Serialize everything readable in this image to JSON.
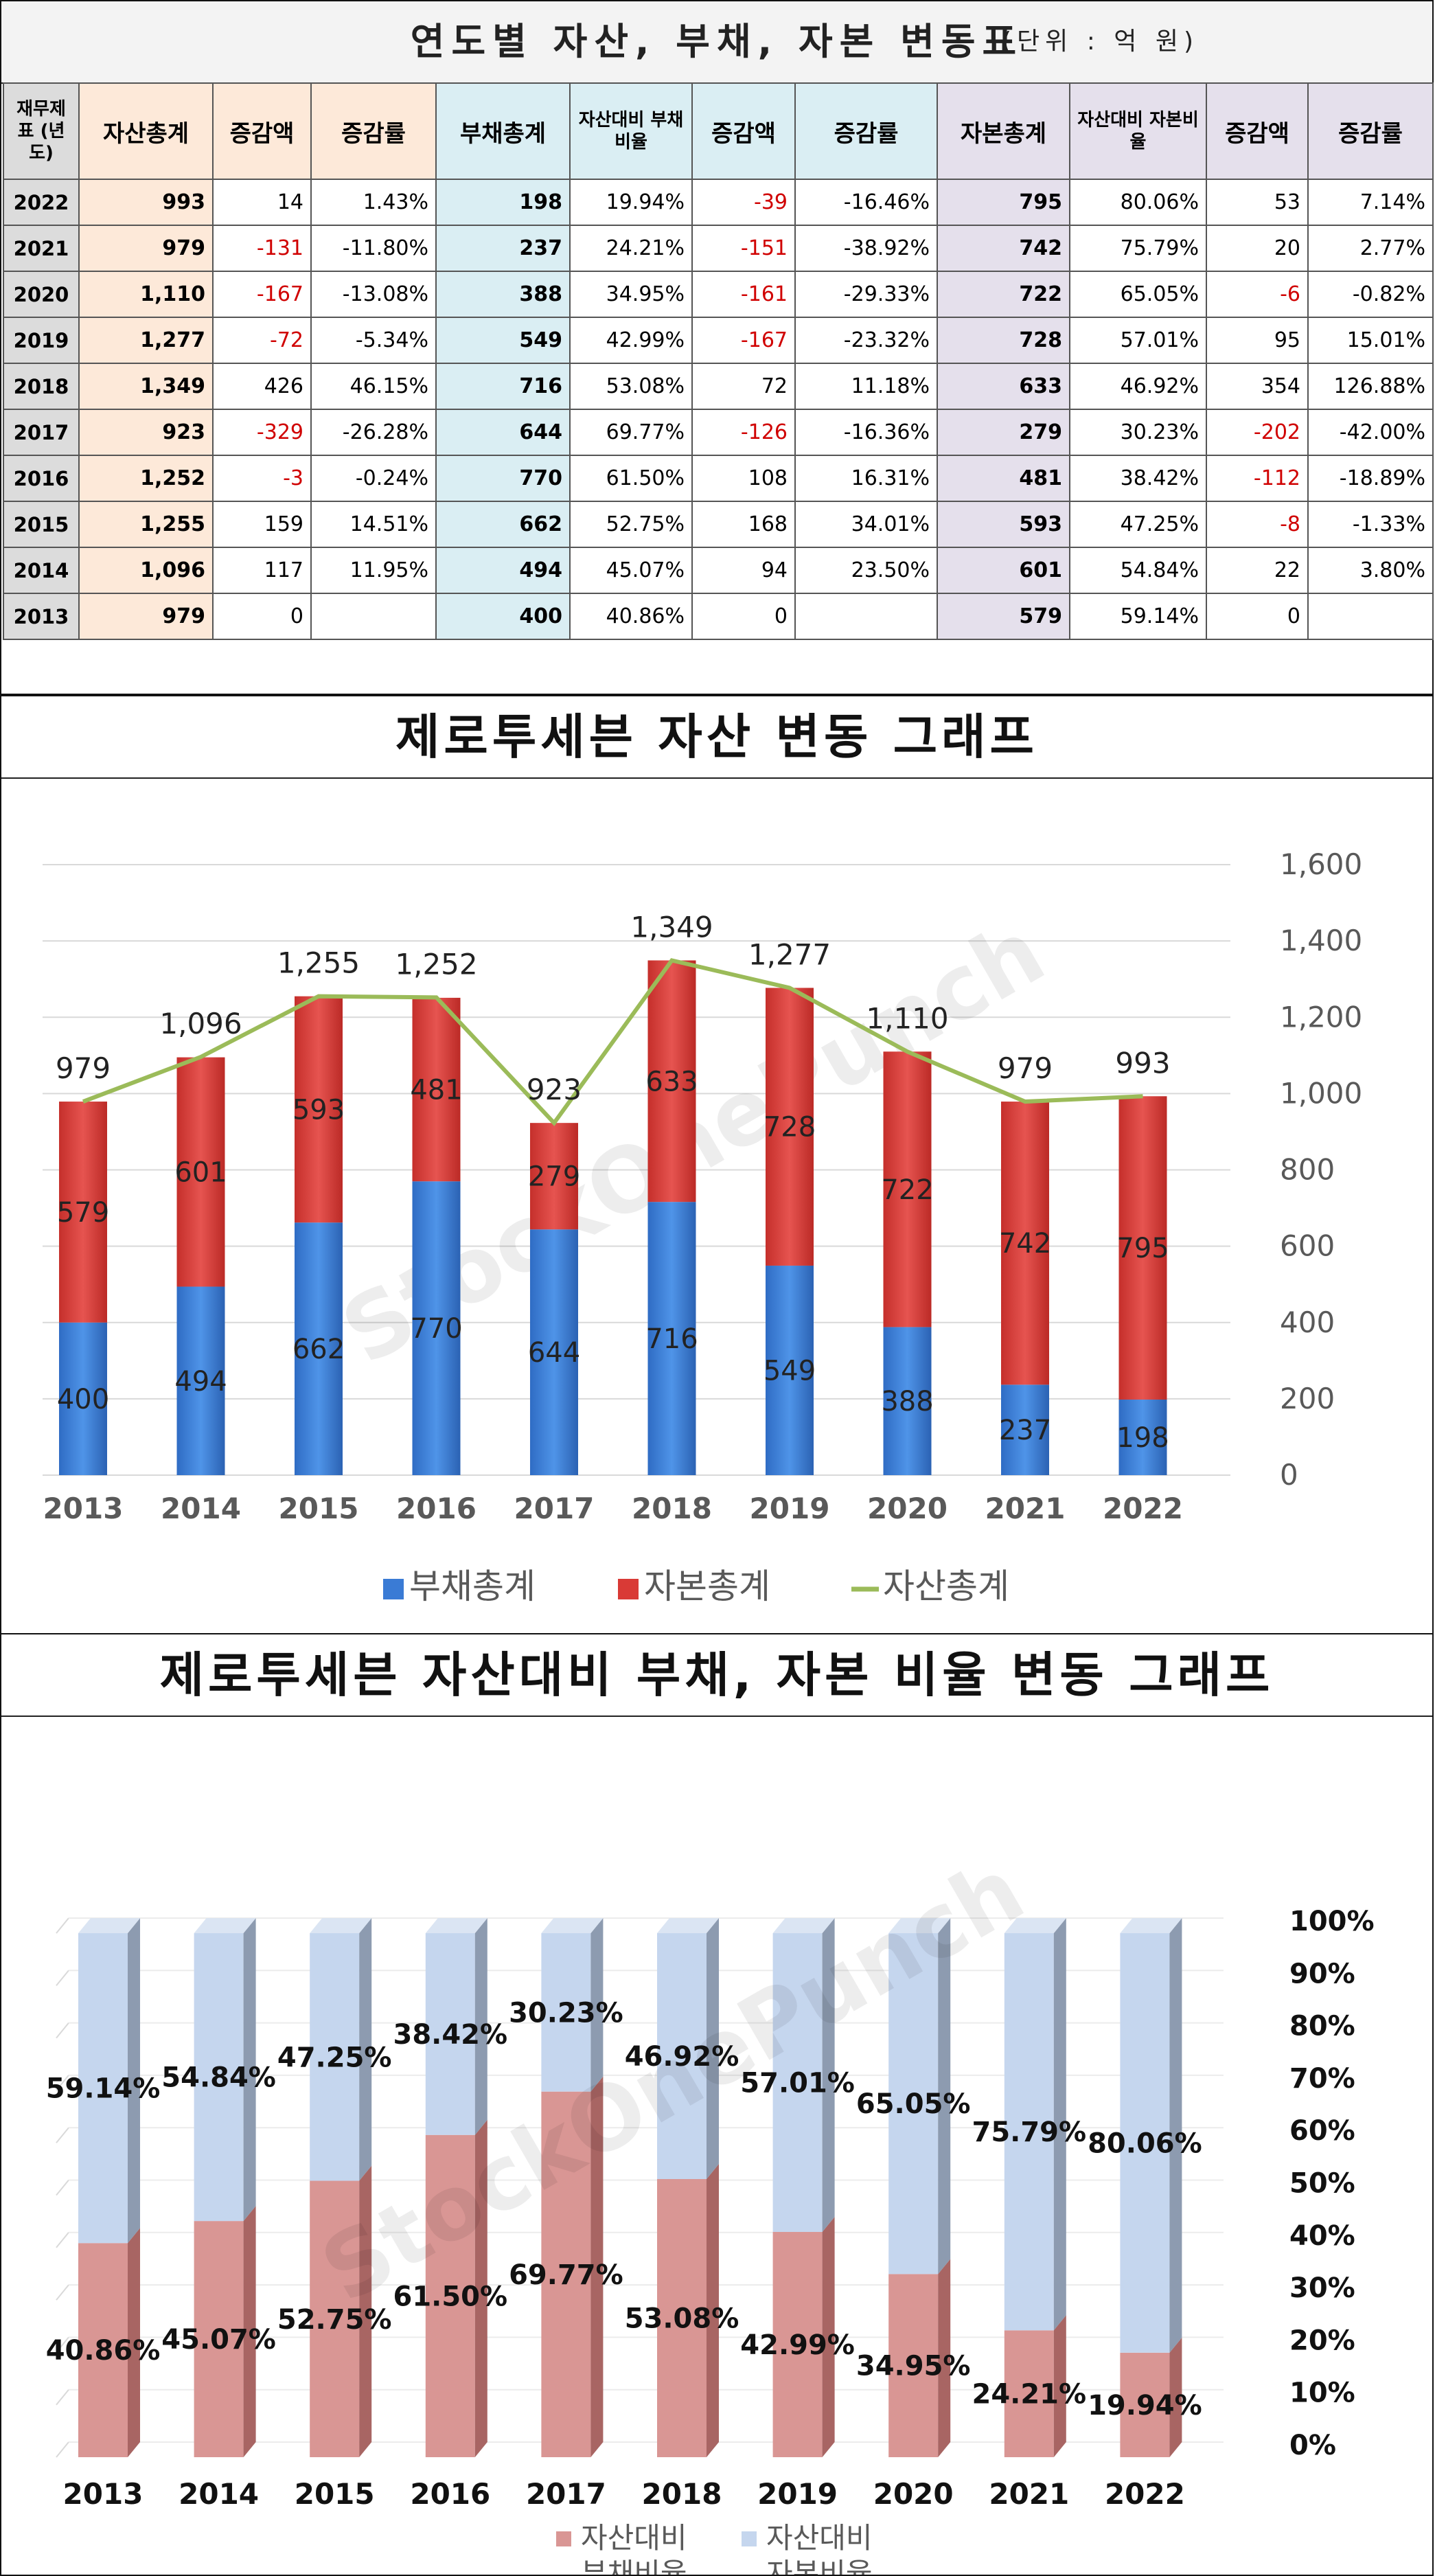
{
  "table": {
    "title": "연도별 자산, 부채, 자본 변동표",
    "unit": "(단위 : 억 원)",
    "headers": [
      "재무제표 (년도)",
      "자산총계",
      "증감액",
      "증감률",
      "부채총계",
      "자산대비 부채비율",
      "증감액",
      "증감률",
      "자본총계",
      "자산대비 자본비율",
      "증감액",
      "증감률"
    ],
    "rows": [
      {
        "year": "2022",
        "asset": "993",
        "asset_chg": "14",
        "asset_rate": "1.43%",
        "liab": "198",
        "liab_ratio": "19.94%",
        "liab_chg": "-39",
        "liab_rate": "-16.46%",
        "eq": "795",
        "eq_ratio": "80.06%",
        "eq_chg": "53",
        "eq_rate": "7.14%"
      },
      {
        "year": "2021",
        "asset": "979",
        "asset_chg": "-131",
        "asset_rate": "-11.80%",
        "liab": "237",
        "liab_ratio": "24.21%",
        "liab_chg": "-151",
        "liab_rate": "-38.92%",
        "eq": "742",
        "eq_ratio": "75.79%",
        "eq_chg": "20",
        "eq_rate": "2.77%"
      },
      {
        "year": "2020",
        "asset": "1,110",
        "asset_chg": "-167",
        "asset_rate": "-13.08%",
        "liab": "388",
        "liab_ratio": "34.95%",
        "liab_chg": "-161",
        "liab_rate": "-29.33%",
        "eq": "722",
        "eq_ratio": "65.05%",
        "eq_chg": "-6",
        "eq_rate": "-0.82%"
      },
      {
        "year": "2019",
        "asset": "1,277",
        "asset_chg": "-72",
        "asset_rate": "-5.34%",
        "liab": "549",
        "liab_ratio": "42.99%",
        "liab_chg": "-167",
        "liab_rate": "-23.32%",
        "eq": "728",
        "eq_ratio": "57.01%",
        "eq_chg": "95",
        "eq_rate": "15.01%"
      },
      {
        "year": "2018",
        "asset": "1,349",
        "asset_chg": "426",
        "asset_rate": "46.15%",
        "liab": "716",
        "liab_ratio": "53.08%",
        "liab_chg": "72",
        "liab_rate": "11.18%",
        "eq": "633",
        "eq_ratio": "46.92%",
        "eq_chg": "354",
        "eq_rate": "126.88%"
      },
      {
        "year": "2017",
        "asset": "923",
        "asset_chg": "-329",
        "asset_rate": "-26.28%",
        "liab": "644",
        "liab_ratio": "69.77%",
        "liab_chg": "-126",
        "liab_rate": "-16.36%",
        "eq": "279",
        "eq_ratio": "30.23%",
        "eq_chg": "-202",
        "eq_rate": "-42.00%"
      },
      {
        "year": "2016",
        "asset": "1,252",
        "asset_chg": "-3",
        "asset_rate": "-0.24%",
        "liab": "770",
        "liab_ratio": "61.50%",
        "liab_chg": "108",
        "liab_rate": "16.31%",
        "eq": "481",
        "eq_ratio": "38.42%",
        "eq_chg": "-112",
        "eq_rate": "-18.89%"
      },
      {
        "year": "2015",
        "asset": "1,255",
        "asset_chg": "159",
        "asset_rate": "14.51%",
        "liab": "662",
        "liab_ratio": "52.75%",
        "liab_chg": "168",
        "liab_rate": "34.01%",
        "eq": "593",
        "eq_ratio": "47.25%",
        "eq_chg": "-8",
        "eq_rate": "-1.33%"
      },
      {
        "year": "2014",
        "asset": "1,096",
        "asset_chg": "117",
        "asset_rate": "11.95%",
        "liab": "494",
        "liab_ratio": "45.07%",
        "liab_chg": "94",
        "liab_rate": "23.50%",
        "eq": "601",
        "eq_ratio": "54.84%",
        "eq_chg": "22",
        "eq_rate": "3.80%"
      },
      {
        "year": "2013",
        "asset": "979",
        "asset_chg": "0",
        "asset_rate": "",
        "liab": "400",
        "liab_ratio": "40.86%",
        "liab_chg": "0",
        "liab_rate": "",
        "eq": "579",
        "eq_ratio": "59.14%",
        "eq_chg": "0",
        "eq_rate": ""
      }
    ]
  },
  "watermark": "StockOnePunch",
  "colors": {
    "debt": "#3a7bd5",
    "equity": "#d93a36",
    "assetLine": "#9bbb59",
    "debtRatio": "#d99694",
    "equityRatio": "#c5d6ee"
  },
  "chart_data": [
    {
      "type": "bar",
      "stacked": true,
      "title": "제로투세븐 자산 변동 그래프",
      "categories": [
        "2013",
        "2014",
        "2015",
        "2016",
        "2017",
        "2018",
        "2019",
        "2020",
        "2021",
        "2022"
      ],
      "series": [
        {
          "name": "부채총계",
          "values": [
            400,
            494,
            662,
            770,
            644,
            716,
            549,
            388,
            237,
            198
          ]
        },
        {
          "name": "자본총계",
          "values": [
            579,
            601,
            593,
            481,
            279,
            633,
            728,
            722,
            742,
            795
          ]
        },
        {
          "name": "자산총계",
          "type": "line",
          "values": [
            979,
            1096,
            1255,
            1252,
            923,
            1349,
            1277,
            1110,
            979,
            993
          ]
        }
      ],
      "total_labels": [
        "979",
        "1,096",
        "1,255",
        "1,252",
        "923",
        "1,349",
        "1,277",
        "1,110",
        "979",
        "993"
      ],
      "yticks": [
        "0",
        "200",
        "400",
        "600",
        "800",
        "1,000",
        "1,200",
        "1,400",
        "1,600"
      ],
      "ylim": [
        0,
        1600
      ],
      "grid": true,
      "legend": "bottom"
    },
    {
      "type": "bar",
      "stacked": true,
      "percent": true,
      "title": "제로투세븐 자산대비 부채, 자본 비율 변동 그래프",
      "categories": [
        "2013",
        "2014",
        "2015",
        "2016",
        "2017",
        "2018",
        "2019",
        "2020",
        "2021",
        "2022"
      ],
      "series": [
        {
          "name": "자산대비 부채비율",
          "values": [
            40.86,
            45.07,
            52.75,
            61.5,
            69.77,
            53.08,
            42.99,
            34.95,
            24.21,
            19.94
          ],
          "labels": [
            "40.86%",
            "45.07%",
            "52.75%",
            "61.50%",
            "69.77%",
            "53.08%",
            "42.99%",
            "34.95%",
            "24.21%",
            "19.94%"
          ]
        },
        {
          "name": "자산대비 자본비율",
          "values": [
            59.14,
            54.84,
            47.25,
            38.42,
            30.23,
            46.92,
            57.01,
            65.05,
            75.79,
            80.06
          ],
          "labels": [
            "59.14%",
            "54.84%",
            "47.25%",
            "38.42%",
            "30.23%",
            "46.92%",
            "57.01%",
            "65.05%",
            "75.79%",
            "80.06%"
          ]
        }
      ],
      "yticks": [
        "0%",
        "10%",
        "20%",
        "30%",
        "40%",
        "50%",
        "60%",
        "70%",
        "80%",
        "90%",
        "100%"
      ],
      "ylim": [
        0,
        100
      ],
      "legend": "bottom"
    }
  ]
}
